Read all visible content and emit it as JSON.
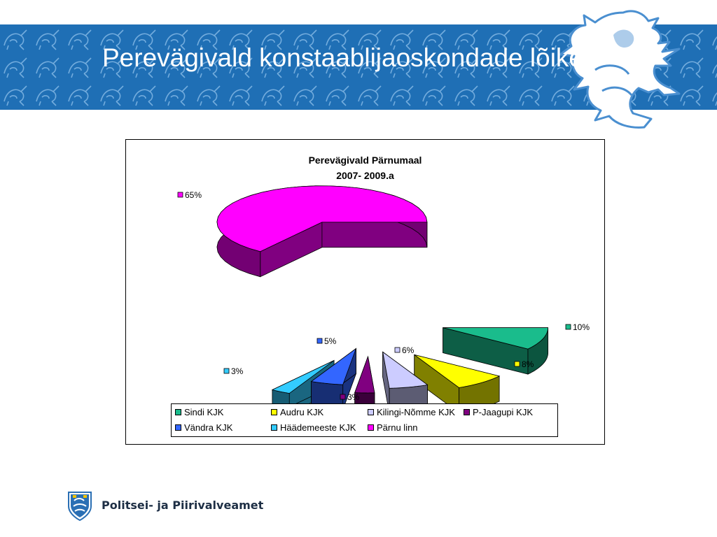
{
  "slide": {
    "title": "Perevägivald konstaablijaoskondade lõikes",
    "footer_org": "Politsei- ja Piirivalveamet"
  },
  "colors": {
    "banner": "#1f6fb5",
    "footer_text": "#1e2f45"
  },
  "icons": [
    "lion-icon",
    "police-crest-icon"
  ],
  "chart_data": {
    "type": "pie",
    "style": "3d-exploded",
    "title": "Perevägivald Pärnumaal",
    "subtitle": "2007- 2009.a",
    "legend_position": "bottom",
    "slices": [
      {
        "name": "Sindi KJK",
        "value": 10,
        "label": "10%",
        "color": "#1abc8c"
      },
      {
        "name": "Audru KJK",
        "value": 8,
        "label": "8%",
        "color": "#ffff00"
      },
      {
        "name": "Kilingi-Nõmme KJK",
        "value": 6,
        "label": "6%",
        "color": "#ccccff"
      },
      {
        "name": "P-Jaagupi KJK",
        "value": 3,
        "label": "3%",
        "color": "#800080"
      },
      {
        "name": "Vändra KJK",
        "value": 5,
        "label": "5%",
        "color": "#3366ff"
      },
      {
        "name": "Häädemeeste KJK",
        "value": 3,
        "label": "3%",
        "color": "#33ccff"
      },
      {
        "name": "Pärnu linn",
        "value": 65,
        "label": "65%",
        "color": "#ff00ff"
      }
    ]
  }
}
